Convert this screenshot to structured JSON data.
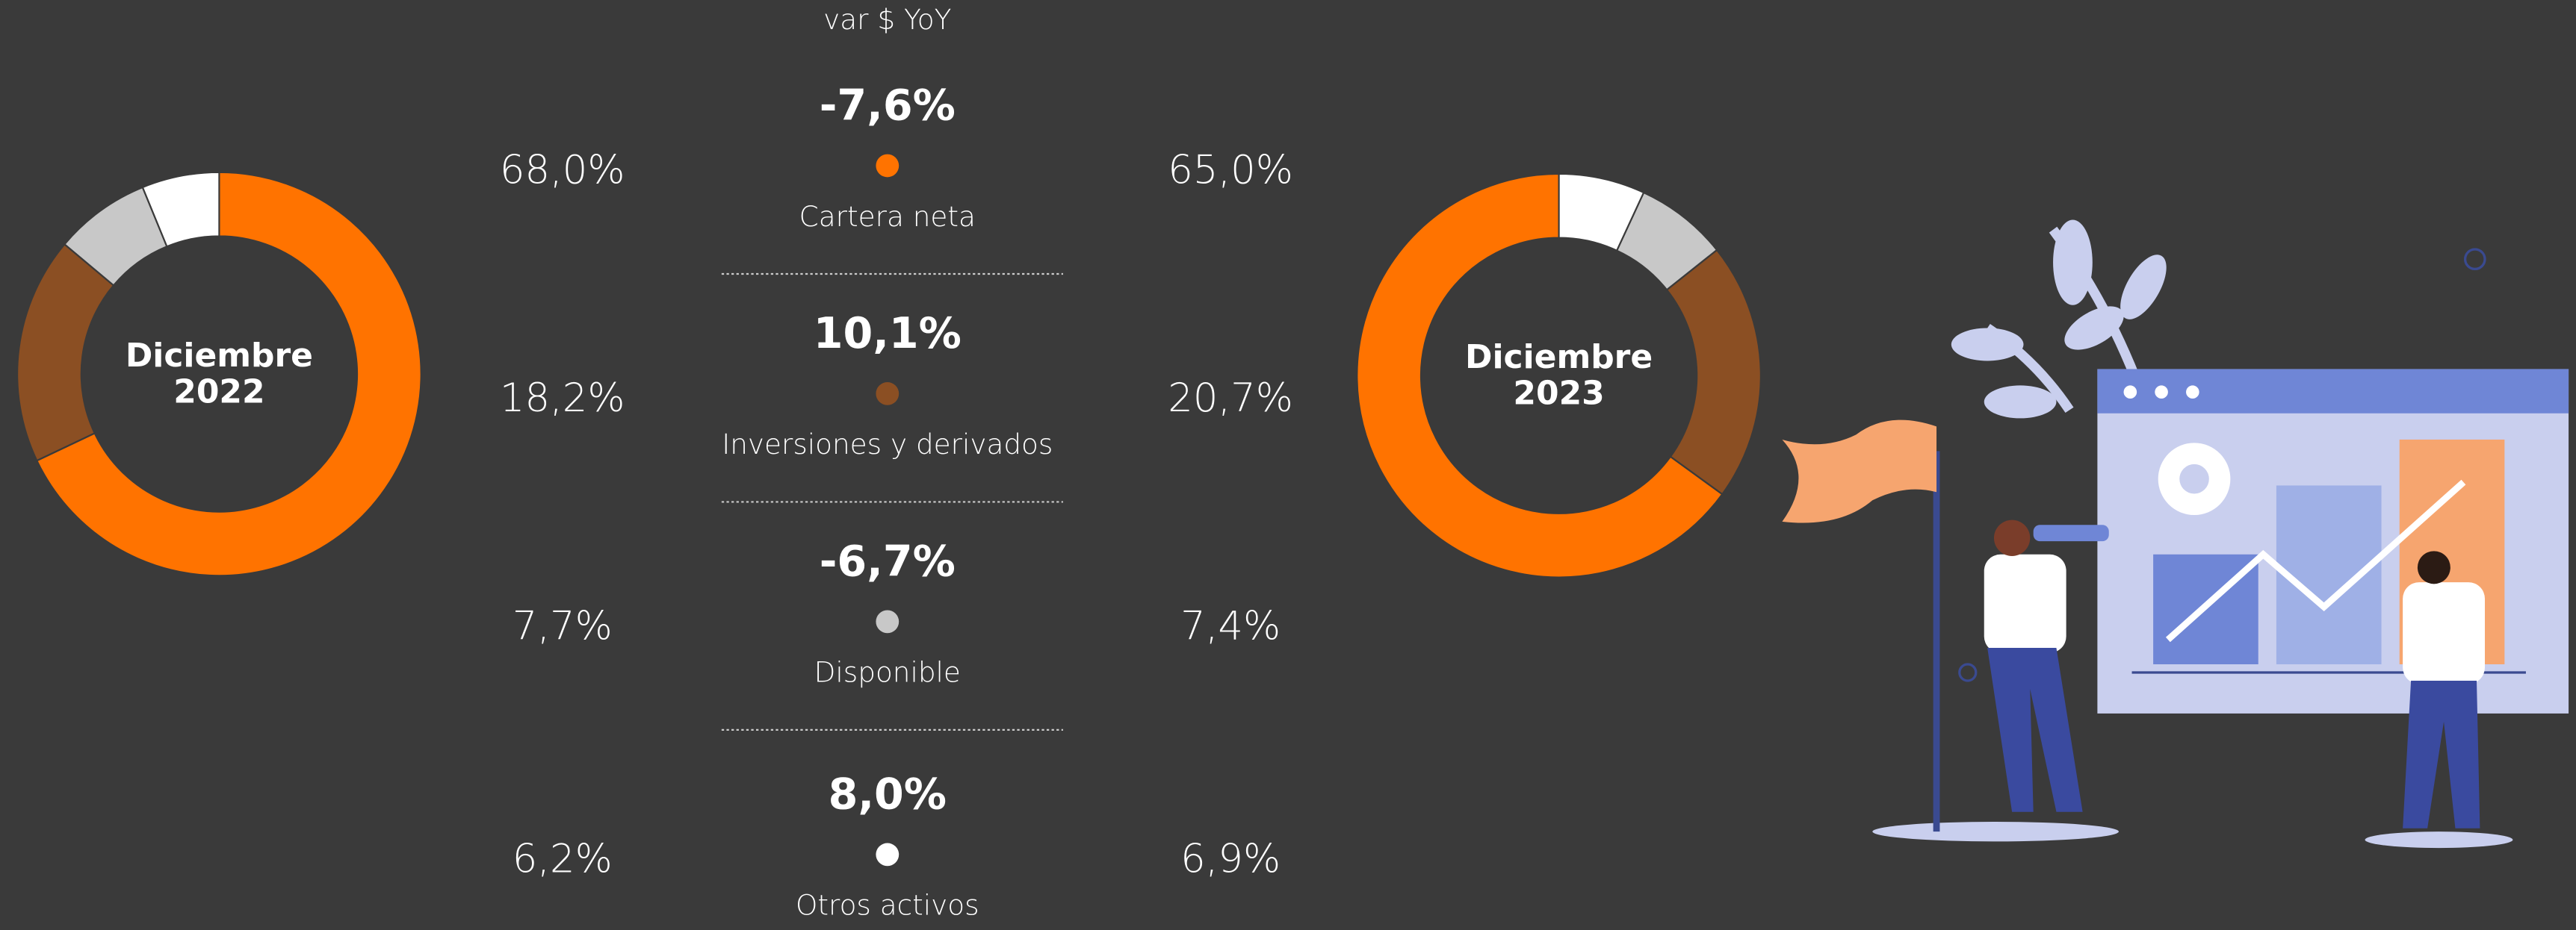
{
  "categories": [
    "Cartera neta",
    "Inversiones y derivados",
    "Disponible",
    "Otros activos"
  ],
  "colors": [
    "#ff7300",
    "#8b4f23",
    "#c8c8c8",
    "#ffffff"
  ],
  "comparison": {
    "title": "var $ YoY",
    "changes": [
      {
        "value": -7.6,
        "label": "-7,6%"
      },
      {
        "value": 10.1,
        "label": "10,1%"
      },
      {
        "value": -6.7,
        "label": "-6,7%"
      },
      {
        "value": 8.0,
        "label": "8,0%"
      }
    ]
  },
  "chart_data": [
    {
      "type": "pie",
      "title_lines": [
        "Diciembre",
        "2022"
      ],
      "clockwise": true,
      "values": [
        68.0,
        18.2,
        7.7,
        6.2
      ],
      "value_labels": [
        "68,0%",
        "18,2%",
        "7,7%",
        "6,2%"
      ]
    },
    {
      "type": "pie",
      "title_lines": [
        "Diciembre",
        "2023"
      ],
      "clockwise": false,
      "values": [
        65.0,
        20.7,
        7.4,
        6.9
      ],
      "value_labels": [
        "65,0%",
        "20,7%",
        "7,4%",
        "6,9%"
      ]
    }
  ]
}
